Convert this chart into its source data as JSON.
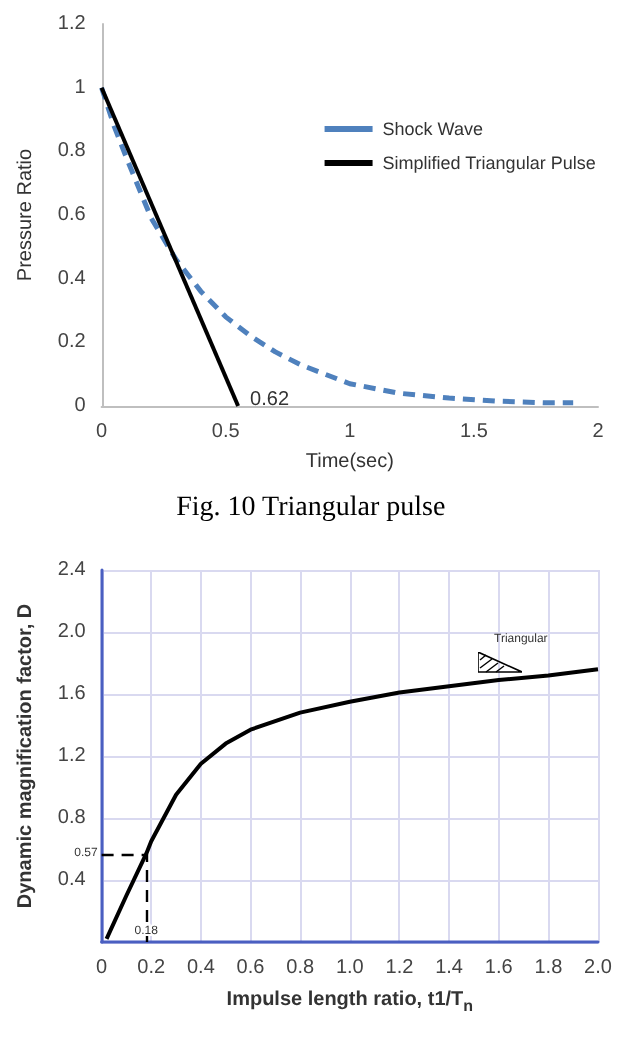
{
  "chart_data": [
    {
      "type": "line",
      "xlabel": "Time(sec)",
      "ylabel": "Pressure Ratio",
      "xlim": [
        0,
        2
      ],
      "xticks": [
        0,
        0.5,
        1,
        1.5,
        2
      ],
      "ylim": [
        0,
        1.2
      ],
      "yticks": [
        0,
        0.2,
        0.4,
        0.6,
        0.8,
        1,
        1.2
      ],
      "grid": false,
      "legend": "top right",
      "marker": "none",
      "series": [
        {
          "name": "Shock Wave",
          "color": "#4f81bd",
          "line_style": "dashed",
          "x": [
            0,
            0.05,
            0.1,
            0.2,
            0.3,
            0.4,
            0.5,
            0.6,
            0.7,
            0.8,
            0.9,
            1.0,
            1.2,
            1.4,
            1.6,
            1.8,
            1.9
          ],
          "values": [
            1,
            0.88,
            0.78,
            0.59,
            0.46,
            0.36,
            0.28,
            0.22,
            0.17,
            0.13,
            0.1,
            0.07,
            0.04,
            0.025,
            0.015,
            0.01,
            0.01
          ]
        },
        {
          "name": "Simplified Triangular Pulse",
          "color": "#000000",
          "line_style": "solid",
          "x": [
            0,
            0.55
          ],
          "values": [
            1,
            0
          ]
        }
      ],
      "title": "Fig. 10 Triangular pulse",
      "annotations": [
        {
          "text": "0.62",
          "x": 0.55,
          "y": 0
        }
      ]
    },
    {
      "type": "line",
      "xlabel": "Impulse length ratio, t1/T$_{n}$",
      "ylabel": "Dynamic magnification factor, D",
      "xlim": [
        0,
        2
      ],
      "xticks": [
        0,
        0.2,
        0.4,
        0.6,
        0.8,
        {
          "value": 1,
          "label": "1.0"
        },
        1.2,
        1.4,
        1.6,
        1.8,
        {
          "value": 2,
          "label": "2.0"
        }
      ],
      "ylim": [
        0,
        2.4
      ],
      "yticks": [
        {
          "value": 0,
          "label": null
        },
        0.4,
        0.8,
        1.2,
        1.6,
        {
          "value": 2,
          "label": "2.0"
        },
        2.4
      ],
      "grid": true,
      "marker": "none",
      "series": [
        {
          "color": "#000000",
          "line_style": "solid",
          "x": [
            0.02,
            0.1,
            0.18,
            0.2,
            0.3,
            0.4,
            0.5,
            0.6,
            0.8,
            1.0,
            1.2,
            1.4,
            1.6,
            1.8,
            2.0
          ],
          "values": [
            0.02,
            0.3,
            0.57,
            0.65,
            0.95,
            1.15,
            1.28,
            1.37,
            1.48,
            1.55,
            1.61,
            1.65,
            1.69,
            1.72,
            1.76
          ]
        }
      ],
      "ref_lines": [
        {
          "axis": "y",
          "value": 0.57,
          "label": "0.57",
          "line_style": "dashed",
          "color": "#000000"
        },
        {
          "axis": "x",
          "value": 0.18,
          "label": "0.18",
          "line_style": "dashed",
          "color": "#000000"
        }
      ],
      "annotations": [
        "Triangular"
      ]
    }
  ]
}
